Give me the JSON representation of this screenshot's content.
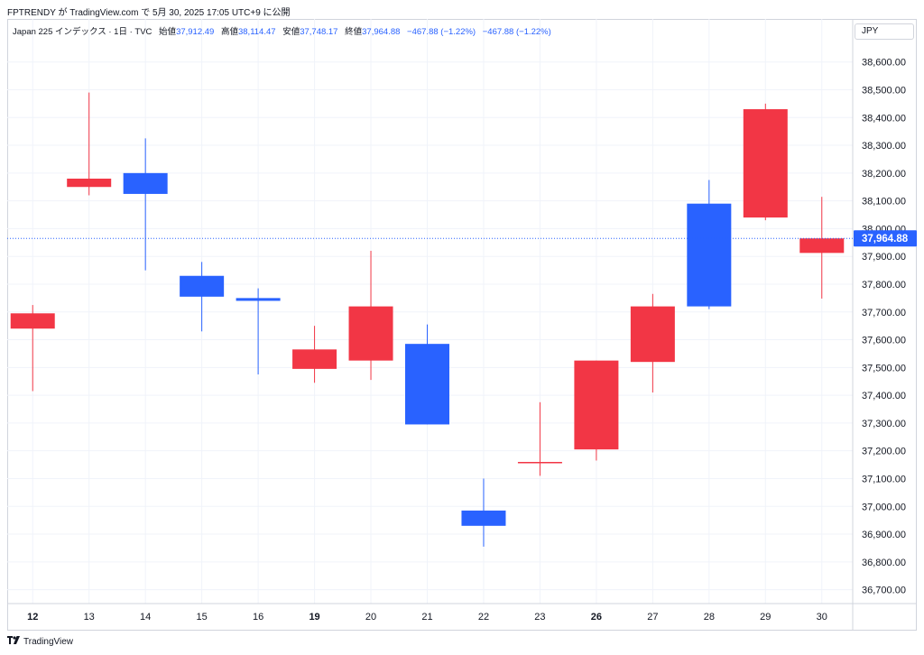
{
  "header": {
    "publish_line": "FPTRENDY が TradingView.com で 5月 30, 2025 17:05 UTC+9 に公開"
  },
  "legend": {
    "symbol": "Japan 225 インデックス · 1日 · TVC",
    "open_label": "始値",
    "open": "37,912.49",
    "high_label": "高値",
    "high": "38,114.47",
    "low_label": "安値",
    "low": "37,748.17",
    "close_label": "終値",
    "close": "37,964.88",
    "change": "−467.88 (−1.22%)",
    "change2": "−467.88 (−1.22%)"
  },
  "currency_button": "JPY",
  "last_price_label": "37,964.88",
  "footer": {
    "brand": "TradingView",
    "logo": "tv-logo-icon"
  },
  "colors": {
    "up": "#f23645",
    "down": "#2962ff",
    "grid": "#f0f3fa",
    "text": "#131722"
  },
  "chart_data": {
    "type": "candlestick",
    "title": "Japan 225 インデックス · 1日 · TVC",
    "ylim": [
      36650,
      38690
    ],
    "y_ticks": [
      36700,
      36800,
      36900,
      37000,
      37100,
      37200,
      37300,
      37400,
      37500,
      37600,
      37700,
      37800,
      37900,
      38000,
      38100,
      38200,
      38300,
      38400,
      38500,
      38600
    ],
    "y_tick_labels": [
      "36,700.00",
      "36,800.00",
      "36,900.00",
      "37,000.00",
      "37,100.00",
      "37,200.00",
      "37,300.00",
      "37,400.00",
      "37,500.00",
      "37,600.00",
      "37,700.00",
      "37,800.00",
      "37,900.00",
      "38,000.00",
      "38,100.00",
      "38,200.00",
      "38,300.00",
      "38,400.00",
      "38,500.00",
      "38,600.00"
    ],
    "categories": [
      "12",
      "13",
      "14",
      "15",
      "16",
      "19",
      "20",
      "21",
      "22",
      "23",
      "26",
      "27",
      "28",
      "29",
      "30"
    ],
    "bold_categories": [
      "12",
      "19",
      "26"
    ],
    "candles": [
      {
        "date": "12",
        "open": 37640,
        "high": 37725,
        "low": 37415,
        "close": 37695
      },
      {
        "date": "13",
        "open": 38150,
        "high": 38490,
        "low": 38120,
        "close": 38180
      },
      {
        "date": "14",
        "open": 38200,
        "high": 38325,
        "low": 37850,
        "close": 38125
      },
      {
        "date": "15",
        "open": 37830,
        "high": 37880,
        "low": 37630,
        "close": 37755
      },
      {
        "date": "16",
        "open": 37750,
        "high": 37785,
        "low": 37475,
        "close": 37740
      },
      {
        "date": "19",
        "open": 37495,
        "high": 37650,
        "low": 37445,
        "close": 37565
      },
      {
        "date": "20",
        "open": 37525,
        "high": 37920,
        "low": 37455,
        "close": 37720
      },
      {
        "date": "21",
        "open": 37585,
        "high": 37655,
        "low": 37295,
        "close": 37295
      },
      {
        "date": "22",
        "open": 36985,
        "high": 37100,
        "low": 36855,
        "close": 36930
      },
      {
        "date": "23",
        "open": 37160,
        "high": 37375,
        "low": 37110,
        "close": 37160
      },
      {
        "date": "26",
        "open": 37205,
        "high": 37525,
        "low": 37165,
        "close": 37525
      },
      {
        "date": "27",
        "open": 37520,
        "high": 37765,
        "low": 37410,
        "close": 37720
      },
      {
        "date": "28",
        "open": 38090,
        "high": 38175,
        "low": 37710,
        "close": 37720
      },
      {
        "date": "29",
        "open": 38040,
        "high": 38450,
        "low": 38030,
        "close": 38430
      },
      {
        "date": "30",
        "open": 37912.49,
        "high": 38114.47,
        "low": 37748.17,
        "close": 37964.88
      }
    ],
    "last_price": 37964.88,
    "grid": true
  }
}
